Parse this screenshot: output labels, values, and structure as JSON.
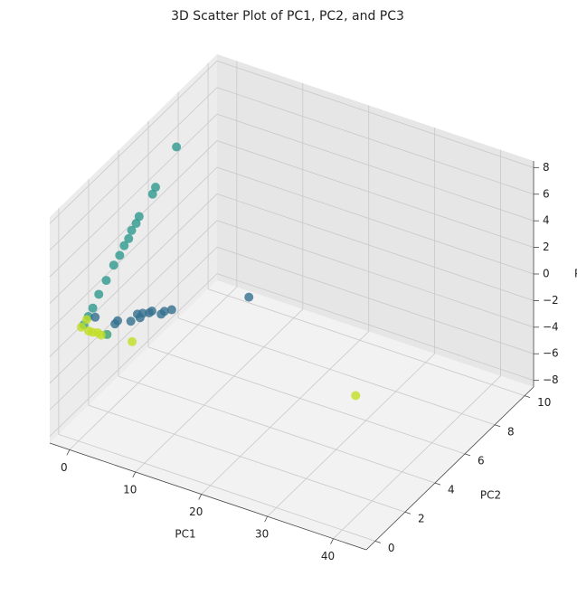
{
  "chart_data": {
    "type": "scatter3d",
    "title": "3D Scatter Plot of PC1, PC2, and PC3",
    "xlabel": "PC1",
    "ylabel": "PC2",
    "zlabel": "PC3",
    "xlim": [
      -3,
      45
    ],
    "ylim": [
      -0.6,
      10.6
    ],
    "zlim": [
      -8.5,
      8.5
    ],
    "xticks": [
      0,
      10,
      20,
      30,
      40
    ],
    "yticks": [
      0,
      2,
      4,
      6,
      8,
      10
    ],
    "zticks": [
      {
        "value": -8,
        "label": "−8"
      },
      {
        "value": -6,
        "label": "−6"
      },
      {
        "value": -4,
        "label": "−4"
      },
      {
        "value": -2,
        "label": "−2"
      },
      0,
      2,
      4,
      6,
      8
    ],
    "grid": true,
    "series": [
      {
        "color": "#2e9a8e",
        "x": [
          -1,
          -1,
          -1,
          -1,
          -1,
          -1,
          -1,
          -1,
          -1,
          -1,
          -1,
          -1,
          -1,
          -1,
          -1
        ],
        "y": [
          7.0,
          5.6,
          5.4,
          4.5,
          4.3,
          4.0,
          3.8,
          3.5,
          3.2,
          2.8,
          2.3,
          1.8,
          1.4,
          1.1,
          0.8
        ],
        "z": [
          5.8,
          4.3,
          4.0,
          3.3,
          3.0,
          2.8,
          2.4,
          2.2,
          1.8,
          1.5,
          0.9,
          0.4,
          -0.2,
          -0.5,
          -0.8
        ]
      },
      {
        "color": "#34708e",
        "x": [
          4.4,
          6.8,
          7.8,
          8.6,
          10.0,
          11.4,
          13.0,
          1.4,
          4.8,
          9.6,
          11.9,
          8.2,
          5
        ],
        "y": [
          0.5,
          0.5,
          0.5,
          0.5,
          0.5,
          0.5,
          0.5,
          0.5,
          0.5,
          0.5,
          0.5,
          0.5,
          9.2
        ],
        "z": [
          0.5,
          1.1,
          1.8,
          2.0,
          2.4,
          2.4,
          3.0,
          0.5,
          0.8,
          2.2,
          2.7,
          1.6,
          -6.9
        ]
      },
      {
        "color": "#3aa070",
        "x": [
          3.2
        ],
        "y": [
          0.5
        ],
        "z": [
          -0.5
        ]
      },
      {
        "color": "#c2df23",
        "x": [
          -0.7,
          0.4,
          1.8,
          2.3,
          7.0,
          0.1,
          1.0,
          37.5
        ],
        "y": [
          0.5,
          0.5,
          0.5,
          0.5,
          0.5,
          0.5,
          0.5,
          2
        ],
        "z": [
          -0.6,
          -0.7,
          -0.6,
          -0.7,
          -0.4,
          0.1,
          -0.7,
          -1
        ]
      }
    ]
  }
}
